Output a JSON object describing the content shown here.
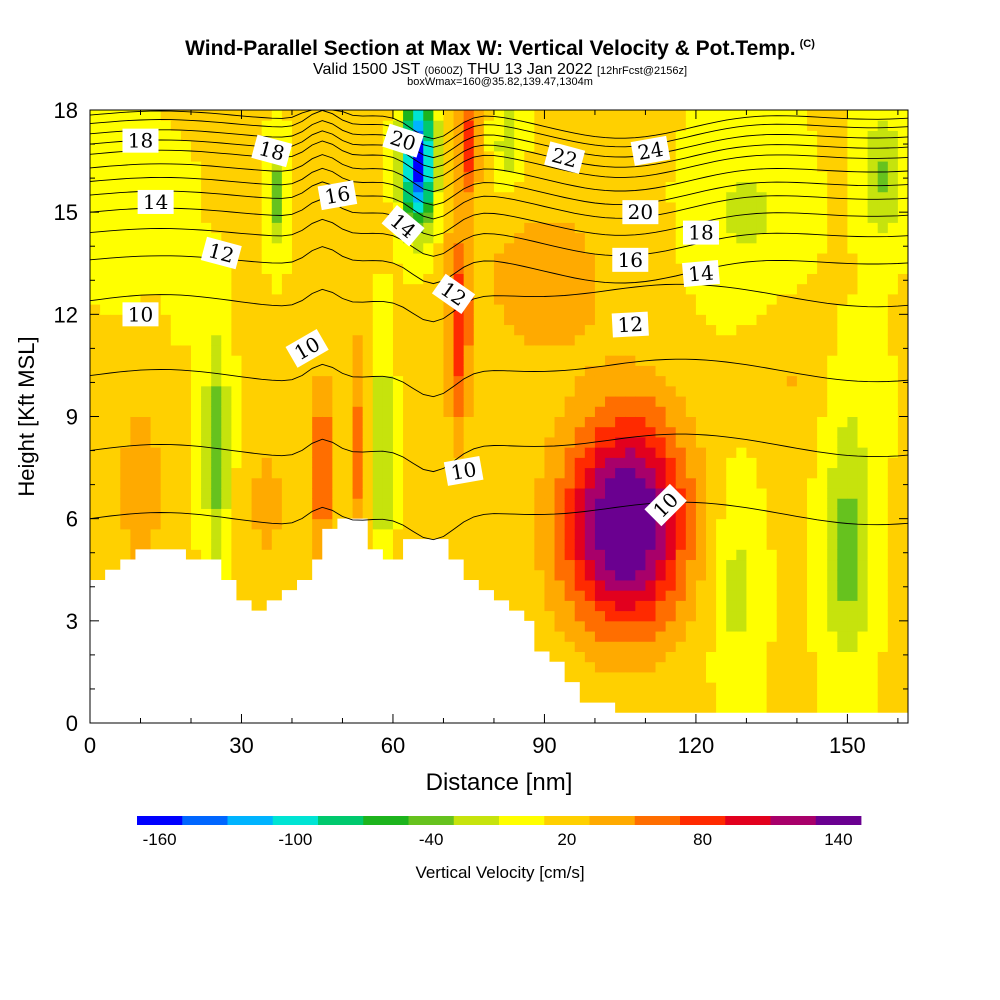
{
  "title": "Wind-Parallel Section at Max W: Vertical Velocity & Pot.Temp.",
  "title_mark": "(C)",
  "subtitle_main": "Valid 1500 JST",
  "subtitle_z": "(0600Z)",
  "subtitle_date": "THU 13 Jan 2022",
  "subtitle_fcst": "[12hrFcst@2156z]",
  "subtitle2": "boxWmax=160@35.82,139.47,1304m",
  "chart_data": {
    "type": "heatmap",
    "xlabel": "Distance [nm]",
    "ylabel": "Height [Kft MSL]",
    "xlim": [
      0,
      162
    ],
    "ylim": [
      0,
      18
    ],
    "x_ticks": [
      "0",
      "30",
      "60",
      "90",
      "120",
      "150"
    ],
    "y_ticks": [
      "0",
      "3",
      "6",
      "9",
      "12",
      "15",
      "18"
    ],
    "colorbar": {
      "label": "Vertical Velocity [cm/s]",
      "tick_labels": [
        "-160",
        "-100",
        "-40",
        "20",
        "80",
        "140"
      ],
      "levels_min": -170,
      "levels_step": 20,
      "colors": [
        "#0000ff",
        "#0066ff",
        "#00b4ff",
        "#00e4d4",
        "#00c96e",
        "#1db41d",
        "#66c21e",
        "#c6e30d",
        "#ffff00",
        "#ffd000",
        "#ffaa00",
        "#ff6e00",
        "#ff2a00",
        "#e2001e",
        "#a8006a",
        "#6a0090"
      ]
    },
    "vertical_velocity_features": [
      {
        "x": 105,
        "y": 5.8,
        "w": 140
      },
      {
        "x": 73,
        "y": 11,
        "w": 70
      },
      {
        "x": 46,
        "y": 7.5,
        "w": 70
      },
      {
        "x": 65,
        "y": 16.5,
        "w": -150
      },
      {
        "x": 25,
        "y": 8,
        "w": -60
      },
      {
        "x": 150,
        "y": 5,
        "w": -50
      }
    ],
    "theta_contour_labels": [
      {
        "text": "18",
        "x": 10,
        "y": 17.1,
        "rot": 0
      },
      {
        "text": "18",
        "x": 36,
        "y": 16.8,
        "rot": 15
      },
      {
        "text": "20",
        "x": 62,
        "y": 17.1,
        "rot": 18
      },
      {
        "text": "22",
        "x": 94,
        "y": 16.6,
        "rot": 15
      },
      {
        "text": "24",
        "x": 111,
        "y": 16.8,
        "rot": -10
      },
      {
        "text": "14",
        "x": 13,
        "y": 15.3,
        "rot": 0
      },
      {
        "text": "16",
        "x": 49,
        "y": 15.5,
        "rot": -10
      },
      {
        "text": "14",
        "x": 62,
        "y": 14.6,
        "rot": 40
      },
      {
        "text": "20",
        "x": 109,
        "y": 15.0,
        "rot": 0
      },
      {
        "text": "18",
        "x": 121,
        "y": 14.4,
        "rot": 0
      },
      {
        "text": "12",
        "x": 26,
        "y": 13.8,
        "rot": 15
      },
      {
        "text": "16",
        "x": 107,
        "y": 13.6,
        "rot": 0
      },
      {
        "text": "14",
        "x": 121,
        "y": 13.2,
        "rot": -5
      },
      {
        "text": "12",
        "x": 72,
        "y": 12.6,
        "rot": 35
      },
      {
        "text": "10",
        "x": 10,
        "y": 12.0,
        "rot": 0
      },
      {
        "text": "12",
        "x": 107,
        "y": 11.7,
        "rot": -3
      },
      {
        "text": "10",
        "x": 43,
        "y": 11.0,
        "rot": -30
      },
      {
        "text": "10",
        "x": 74,
        "y": 7.4,
        "rot": -10
      },
      {
        "text": "10",
        "x": 114,
        "y": 6.4,
        "rot": -45
      }
    ]
  }
}
